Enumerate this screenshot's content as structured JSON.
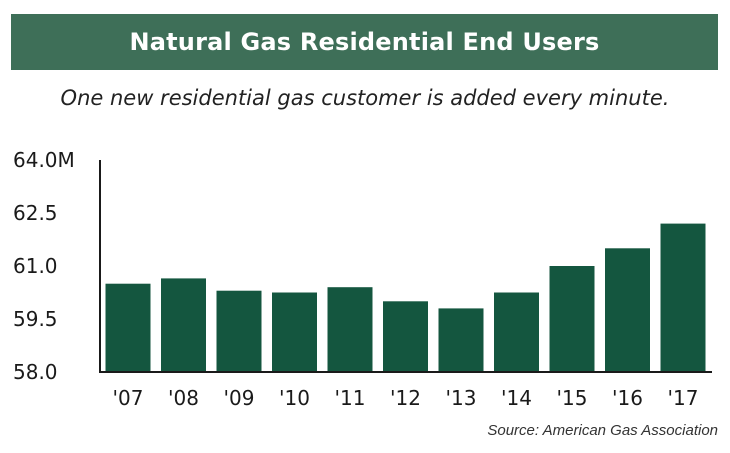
{
  "title": "Natural Gas Residential End Users",
  "subtitle": "One new residential gas customer is added every minute.",
  "source": "Source: American Gas Association",
  "colors": {
    "banner": "#3e6f58",
    "bar": "#14563f",
    "axis": "#1a1a1a"
  },
  "chart_data": {
    "type": "bar",
    "categories": [
      "'07",
      "'08",
      "'09",
      "'10",
      "'11",
      "'12",
      "'13",
      "'14",
      "'15",
      "'16",
      "'17"
    ],
    "values": [
      60.5,
      60.65,
      60.3,
      60.25,
      60.4,
      60.0,
      59.8,
      60.25,
      61.0,
      61.5,
      62.2
    ],
    "ylim": [
      58.0,
      64.0
    ],
    "yticks": [
      58.0,
      59.5,
      61.0,
      62.5,
      64.0
    ],
    "ytick_labels": [
      "58.0",
      "59.5",
      "61.0",
      "62.5",
      "64.0M"
    ],
    "grid": false,
    "title": "Natural Gas Residential End Users",
    "xlabel": "",
    "ylabel": ""
  }
}
